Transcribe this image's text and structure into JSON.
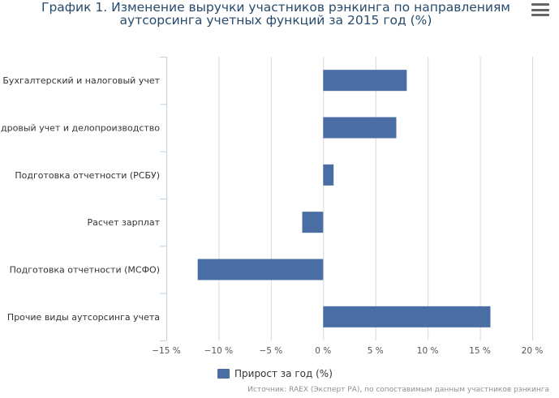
{
  "title_line1": "График 1. Изменение выручки участников рэнкинга по направлениям",
  "title_line2": "аутсорсинга учетных функций за 2015 год (%)",
  "menu_icon": "hamburger-menu-icon",
  "source": "Источник: RAEX (Эксперт РА), по сопоставимым данным участников рэнкинга",
  "colors": {
    "bar": "#4a6ea4",
    "grid": "#d8d8d8",
    "axis": "#c0d0e0",
    "title": "#274b6d"
  },
  "chart_data": {
    "type": "bar",
    "orientation": "horizontal",
    "title": "График 1. Изменение выручки участников рэнкинга по направлениям аутсорсинга учетных функций за 2015 год (%)",
    "categories": [
      "Бухгалтерский и налоговый учет",
      "Кадровый учет и делопроизводство",
      "Подготовка отчетности (РСБУ)",
      "Расчет зарплат",
      "Подготовка отчетности (МСФО)",
      "Прочие виды аутсорсинга учета"
    ],
    "series": [
      {
        "name": "Прирост за год (%)",
        "values": [
          8,
          7,
          1,
          -2,
          -12,
          16
        ]
      }
    ],
    "xlim": [
      -15,
      20
    ],
    "xticks": [
      -15,
      -10,
      -5,
      0,
      5,
      10,
      15,
      20
    ],
    "xtick_labels": [
      "−15 %",
      "−10 %",
      "−5 %",
      "0 %",
      "5 %",
      "10 %",
      "15 %",
      "20 %"
    ],
    "grid": true,
    "legend": "bottom-center"
  }
}
